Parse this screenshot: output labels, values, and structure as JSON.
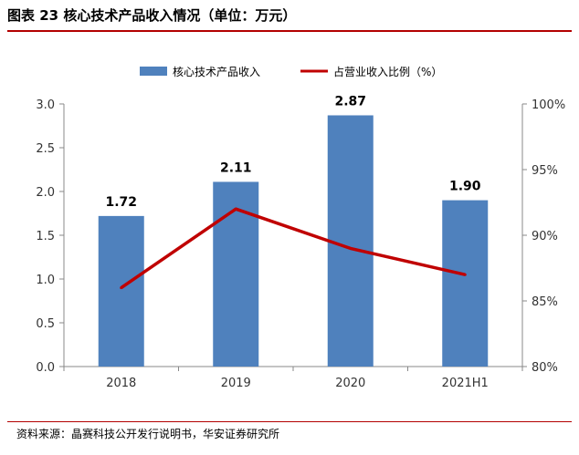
{
  "figure": {
    "title": "图表 23 核心技术产品收入情况（单位：万元）",
    "source": "资料来源：晶赛科技公开发行说明书，华安证券研究所"
  },
  "chart_data": {
    "type": "bar",
    "categories": [
      "2018",
      "2019",
      "2020",
      "2021H1"
    ],
    "series": [
      {
        "name": "核心技术产品收入",
        "type": "bar",
        "axis": "left",
        "values": [
          1.72,
          2.11,
          2.87,
          1.9
        ],
        "color": "#4f81bd",
        "labels": [
          "1.72",
          "2.11",
          "2.87",
          "1.90"
        ]
      },
      {
        "name": "占营业收入比例（%）",
        "type": "line",
        "axis": "right",
        "values": [
          86,
          92,
          89,
          87
        ],
        "color": "#c00000"
      }
    ],
    "y_left": {
      "ylim": [
        0,
        3.0
      ],
      "ticks": [
        "0.0",
        "0.5",
        "1.0",
        "1.5",
        "2.0",
        "2.5",
        "3.0"
      ]
    },
    "y_right": {
      "ylim": [
        80,
        100
      ],
      "ticks": [
        "80%",
        "85%",
        "90%",
        "95%",
        "100%"
      ]
    },
    "grid": false,
    "legend": "top-center"
  }
}
